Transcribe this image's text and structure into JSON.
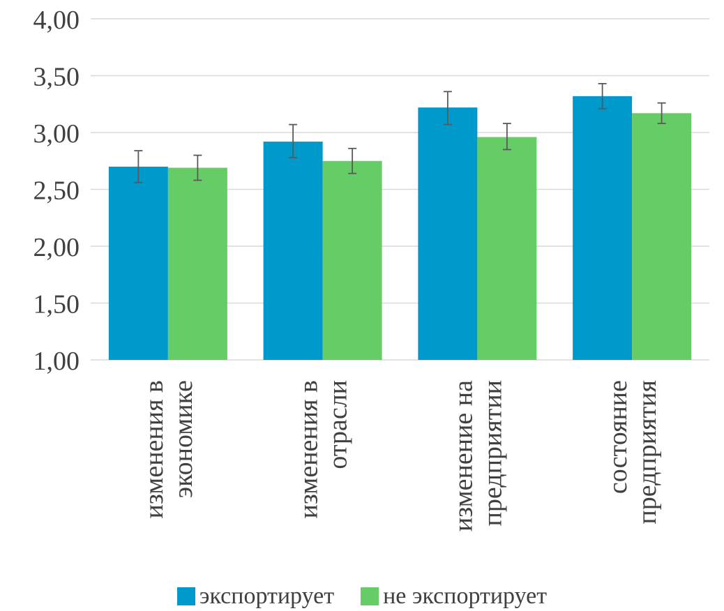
{
  "chart_data": {
    "type": "bar",
    "categories": [
      [
        "изменения в",
        "экономике"
      ],
      [
        "изменения в",
        "отрасли"
      ],
      [
        "изменение на",
        "предприятии"
      ],
      [
        "состояние",
        "предприятия"
      ]
    ],
    "series": [
      {
        "name": "экспортирует",
        "color": "#0099CC",
        "values": [
          2.7,
          2.92,
          3.22,
          3.32
        ],
        "error_low": [
          2.56,
          2.78,
          3.07,
          3.21
        ],
        "error_high": [
          2.84,
          3.07,
          3.36,
          3.43
        ]
      },
      {
        "name": "не экспортирует",
        "color": "#66CC66",
        "values": [
          2.69,
          2.75,
          2.96,
          3.17
        ],
        "error_low": [
          2.58,
          2.64,
          2.85,
          3.08
        ],
        "error_high": [
          2.8,
          2.86,
          3.08,
          3.26
        ]
      }
    ],
    "yticks": [
      "1,00",
      "1,50",
      "2,00",
      "2,50",
      "3,00",
      "3,50",
      "4,00"
    ],
    "ylim": [
      1,
      4
    ],
    "grid": true,
    "legend_position": "bottom"
  }
}
